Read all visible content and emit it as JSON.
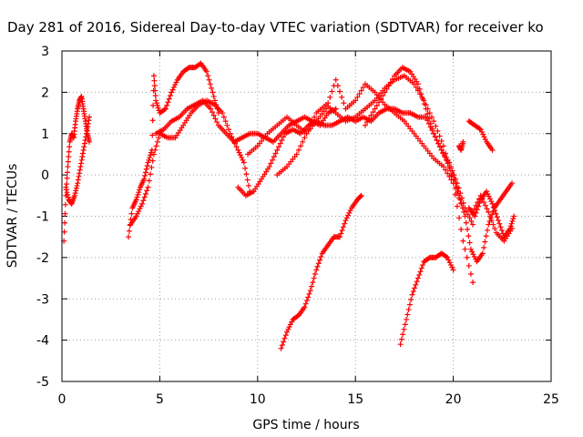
{
  "chart_data": {
    "type": "scatter",
    "title": "Day 281 of 2016, Sidereal Day-to-day VTEC variation (SDTVAR) for receiver ko",
    "xlabel": "GPS time / hours",
    "ylabel": "SDTVAR / TECUs",
    "xlim": [
      0,
      25
    ],
    "ylim": [
      -5,
      3
    ],
    "x_ticks": [
      "0",
      "5",
      "10",
      "15",
      "20",
      "25"
    ],
    "y_ticks": [
      "3",
      "2",
      "1",
      "0",
      "-1",
      "-2",
      "-3",
      "-4",
      "-5"
    ],
    "grid": true,
    "marker": "plus",
    "colors": {
      "series": "#ff0000"
    },
    "series": [
      {
        "x": [
          0.1,
          0.2,
          0.3,
          0.4,
          0.5,
          0.6,
          0.7,
          0.8,
          0.9,
          1.0,
          1.1,
          1.2,
          1.3,
          1.4
        ],
        "y": [
          -1.6,
          -0.5,
          0.2,
          0.8,
          1.0,
          0.9,
          1.3,
          1.6,
          1.8,
          1.9,
          1.6,
          1.3,
          1.0,
          0.8
        ]
      },
      {
        "x": [
          0.2,
          0.35,
          0.5,
          0.65,
          0.8,
          0.95,
          1.1,
          1.25,
          1.4
        ],
        "y": [
          -0.3,
          -0.6,
          -0.7,
          -0.5,
          -0.2,
          0.2,
          0.6,
          1.0,
          1.4
        ]
      },
      {
        "x": [
          3.4,
          3.6,
          3.8,
          4.0,
          4.2,
          4.4,
          4.6,
          4.7,
          4.8,
          5.0,
          5.3,
          5.6,
          5.9,
          6.2,
          6.5,
          6.8,
          7.1,
          7.4,
          7.7,
          8.0
        ],
        "y": [
          -1.5,
          -0.8,
          -0.6,
          -0.3,
          -0.1,
          0.3,
          0.6,
          2.4,
          1.8,
          1.5,
          1.6,
          2.0,
          2.3,
          2.5,
          2.6,
          2.6,
          2.7,
          2.5,
          2.0,
          1.5
        ]
      },
      {
        "x": [
          3.5,
          3.8,
          4.1,
          4.4,
          4.7,
          5.0,
          5.4,
          5.8,
          6.2,
          6.6,
          7.0,
          7.4,
          7.8,
          8.2,
          8.6,
          9.0,
          9.3,
          9.6
        ],
        "y": [
          -1.2,
          -1.0,
          -0.7,
          -0.3,
          0.5,
          1.0,
          0.9,
          0.9,
          1.2,
          1.5,
          1.7,
          1.8,
          1.7,
          1.5,
          1.0,
          0.6,
          0.3,
          -0.4
        ]
      },
      {
        "x": [
          4.8,
          5.2,
          5.6,
          6.0,
          6.4,
          6.8,
          7.2,
          7.6,
          8.0,
          8.4,
          8.8,
          9.2,
          9.6,
          10.0,
          10.4,
          10.8,
          11.2,
          11.6,
          12.0,
          12.4,
          12.8,
          13.2,
          13.6,
          14.0
        ],
        "y": [
          1.0,
          1.1,
          1.3,
          1.4,
          1.6,
          1.7,
          1.8,
          1.6,
          1.2,
          1.0,
          0.8,
          0.9,
          1.0,
          1.0,
          0.9,
          0.8,
          1.0,
          1.2,
          1.3,
          1.4,
          1.3,
          1.2,
          1.5,
          1.6
        ]
      },
      {
        "x": [
          9.0,
          9.4,
          9.8,
          10.2,
          10.6,
          11.0,
          11.4,
          11.8,
          12.2,
          12.6,
          13.0,
          13.4,
          13.8,
          14.2,
          14.6,
          15.0,
          15.4,
          15.8,
          16.2,
          16.6,
          17.0,
          17.4,
          17.8,
          18.2,
          18.6,
          19.0,
          19.4,
          19.8,
          20.2
        ],
        "y": [
          -0.3,
          -0.5,
          -0.4,
          -0.1,
          0.2,
          0.6,
          1.0,
          1.1,
          1.0,
          1.2,
          1.3,
          1.2,
          1.2,
          1.3,
          1.4,
          1.3,
          1.4,
          1.3,
          1.5,
          1.6,
          1.6,
          1.5,
          1.5,
          1.4,
          1.4,
          1.0,
          0.6,
          0.2,
          -0.3
        ]
      },
      {
        "x": [
          9.5,
          10.0,
          10.5,
          11.0,
          11.5,
          12.0,
          12.5,
          13.0,
          13.5,
          14.0,
          14.5,
          15.0,
          15.5,
          16.0,
          16.5,
          17.0,
          17.5,
          18.0,
          18.5,
          19.0,
          19.5,
          20.0,
          20.5
        ],
        "y": [
          0.5,
          0.7,
          1.0,
          1.2,
          1.4,
          1.2,
          1.0,
          1.3,
          1.6,
          2.3,
          1.6,
          1.8,
          2.2,
          2.0,
          1.7,
          1.5,
          1.3,
          1.0,
          0.7,
          0.4,
          0.2,
          -0.2,
          -0.8
        ]
      },
      {
        "x": [
          11.0,
          11.5,
          12.0,
          12.5,
          13.0,
          13.5,
          14.0,
          14.5,
          15.0,
          15.5,
          16.0,
          16.5,
          17.0,
          17.5,
          18.0,
          18.5,
          19.0,
          19.5,
          20.0,
          20.5,
          21.0
        ],
        "y": [
          0.0,
          0.2,
          0.5,
          1.0,
          1.5,
          1.7,
          1.5,
          1.3,
          1.4,
          1.6,
          1.8,
          2.1,
          2.3,
          2.4,
          2.2,
          1.8,
          1.3,
          0.7,
          -0.2,
          -1.6,
          -2.6
        ]
      },
      {
        "x": [
          15.5,
          16.0,
          16.5,
          17.0,
          17.4,
          17.8,
          18.2,
          18.6,
          19.0,
          19.4,
          19.8,
          20.2,
          20.6,
          21.0
        ],
        "y": [
          1.2,
          1.6,
          2.0,
          2.4,
          2.6,
          2.5,
          2.2,
          1.6,
          1.0,
          0.6,
          0.3,
          -0.2,
          -0.8,
          -1.2
        ]
      },
      {
        "x": [
          11.2,
          11.5,
          11.8,
          12.1,
          12.4,
          12.7,
          13.0,
          13.3,
          13.6,
          13.9,
          14.2,
          14.5,
          14.8,
          15.1,
          15.3
        ],
        "y": [
          -4.2,
          -3.8,
          -3.5,
          -3.4,
          -3.2,
          -2.8,
          -2.3,
          -1.9,
          -1.7,
          -1.5,
          -1.5,
          -1.1,
          -0.8,
          -0.6,
          -0.5
        ]
      },
      {
        "x": [
          17.3,
          17.6,
          17.9,
          18.2,
          18.5,
          18.8,
          19.1,
          19.4,
          19.7,
          20.0
        ],
        "y": [
          -4.1,
          -3.5,
          -2.9,
          -2.5,
          -2.1,
          -2.0,
          -2.0,
          -1.9,
          -2.0,
          -2.3
        ]
      },
      {
        "x": [
          20.0,
          20.3,
          20.6,
          20.9,
          21.2,
          21.5,
          21.8,
          22.1,
          22.4,
          22.7,
          23.0
        ],
        "y": [
          0.0,
          -0.5,
          -1.0,
          -1.8,
          -2.1,
          -1.9,
          -1.2,
          -0.8,
          -0.6,
          -0.4,
          -0.2
        ]
      },
      {
        "x": [
          20.8,
          21.1,
          21.4,
          21.7,
          22.0,
          22.3,
          22.6,
          22.9,
          23.1
        ],
        "y": [
          -0.8,
          -1.0,
          -0.6,
          -0.4,
          -0.7,
          -1.1,
          -1.5,
          -1.3,
          -1.0
        ]
      },
      {
        "x": [
          21.0,
          21.4,
          21.8,
          22.2,
          22.6,
          23.0
        ],
        "y": [
          -0.9,
          -0.5,
          -0.9,
          -1.4,
          -1.6,
          -1.3
        ]
      },
      {
        "x": [
          20.8,
          21.1,
          21.4,
          21.7,
          22.0
        ],
        "y": [
          1.3,
          1.2,
          1.1,
          0.8,
          0.6
        ]
      },
      {
        "x": [
          20.3,
          20.4,
          20.5
        ],
        "y": [
          0.7,
          0.6,
          0.8
        ]
      }
    ]
  }
}
